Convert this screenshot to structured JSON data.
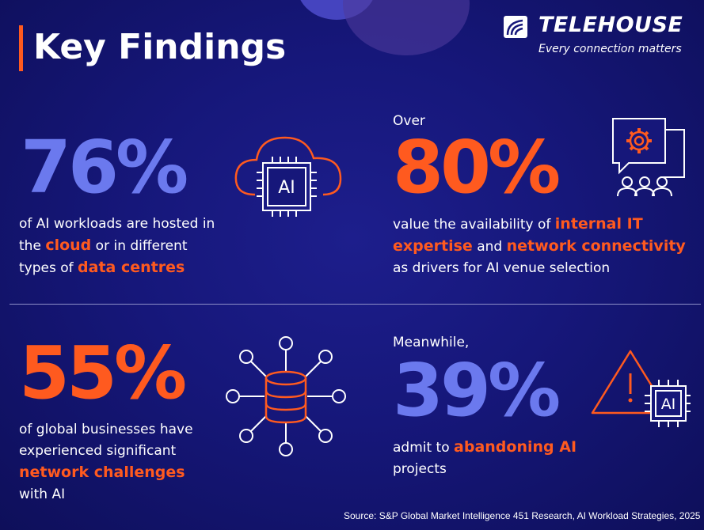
{
  "header": {
    "title": "Key Findings",
    "logo_name": "TELEHOUSE",
    "logo_tagline": "Every connection matters"
  },
  "findings": [
    {
      "prefix": "",
      "value": "76%",
      "text_parts": [
        "of AI workloads are hosted in the ",
        "cloud",
        " or in different types of ",
        "data centres"
      ]
    },
    {
      "prefix": "Over",
      "value": "80%",
      "text_parts": [
        "value the availability of ",
        "internal IT expertise",
        " and ",
        "network connectivity",
        " as drivers for AI venue selection"
      ]
    },
    {
      "prefix": "",
      "value": "55%",
      "text_parts": [
        "of global businesses have experienced significant ",
        "network challenges",
        " with AI"
      ]
    },
    {
      "prefix": "Meanwhile,",
      "value": "39%",
      "text_parts": [
        "admit to ",
        "abandoning AI",
        " projects"
      ]
    }
  ],
  "icons": {
    "cloud_ai": "cloud-ai-chip-icon",
    "ai_label": "AI",
    "gear_chat": "gear-chat-people-icon",
    "database_network": "database-network-icon",
    "warning_ai": "warning-ai-chip-icon"
  },
  "source": "Source: S&P Global Market Intelligence 451 Research, AI Workload Strategies, 2025",
  "colors": {
    "background": "#16177a",
    "accent_orange": "#ff5a1f",
    "accent_blue": "#6b79ee",
    "text": "#ffffff"
  }
}
